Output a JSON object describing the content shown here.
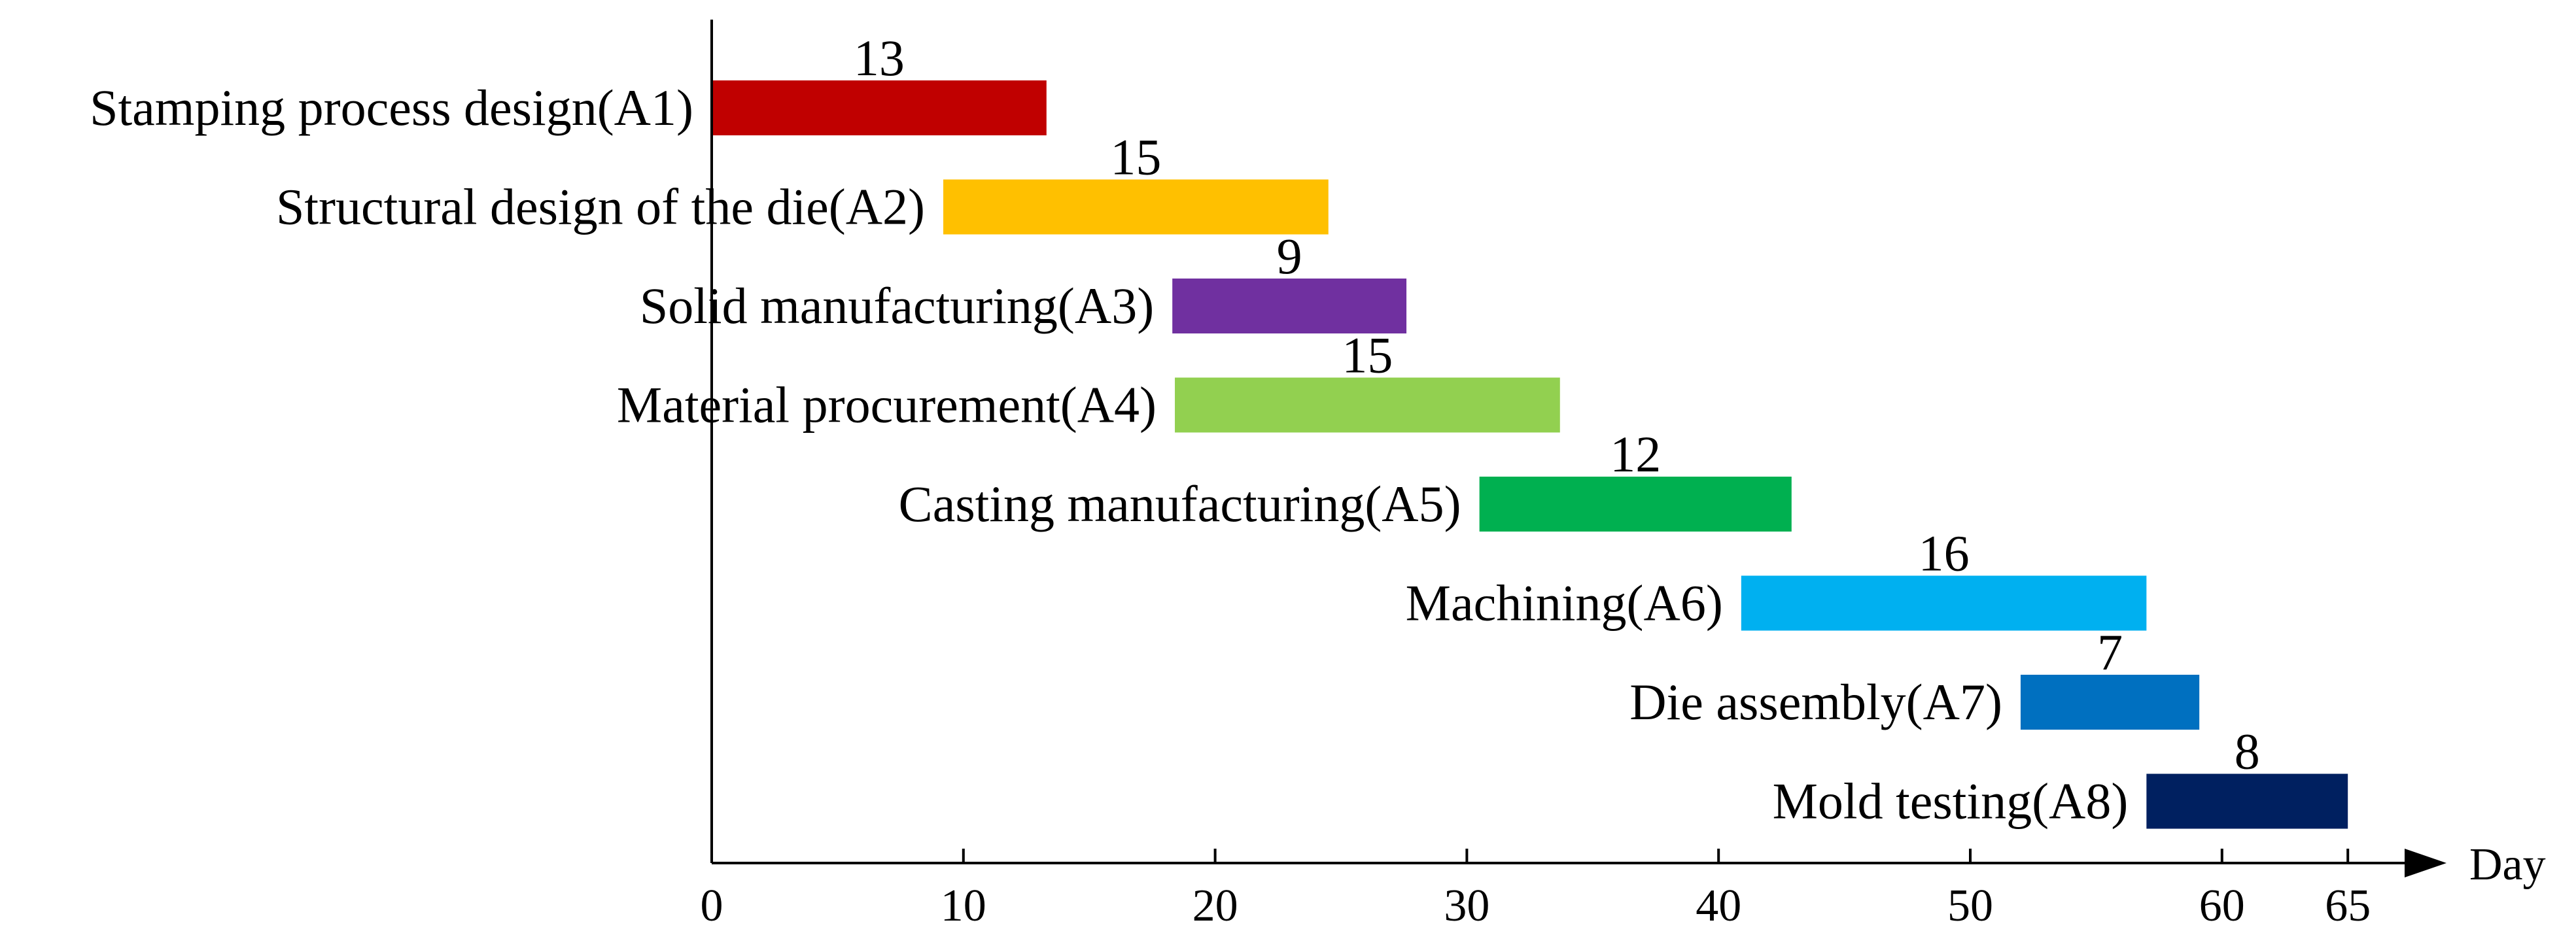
{
  "chart_data": {
    "type": "gantt",
    "title": "",
    "xlabel": "Day",
    "ylabel": "",
    "xlim": [
      0,
      65
    ],
    "x_ticks": [
      0,
      10,
      20,
      30,
      40,
      50,
      60,
      65
    ],
    "tasks": [
      {
        "label": "Stamping process design(A1)",
        "start": 0,
        "duration": 13,
        "end": 13.3,
        "color": "#c00000"
      },
      {
        "label": "Structural design of the die(A2)",
        "start": 9.2,
        "duration": 15,
        "end": 24.5,
        "color": "#ffc000"
      },
      {
        "label": "Solid manufacturing(A3)",
        "start": 18.3,
        "duration": 9,
        "end": 27.6,
        "color": "#7030a0"
      },
      {
        "label": "Material procurement(A4)",
        "start": 18.4,
        "duration": 15,
        "end": 33.7,
        "color": "#92d050"
      },
      {
        "label": "Casting manufacturing(A5)",
        "start": 30.5,
        "duration": 12,
        "end": 42.9,
        "color": "#00b050"
      },
      {
        "label": "Machining(A6)",
        "start": 40.9,
        "duration": 16,
        "end": 57.0,
        "color": "#00b0f0"
      },
      {
        "label": "Die assembly(A7)",
        "start": 52.0,
        "duration": 7,
        "end": 59.1,
        "color": "#0070c0"
      },
      {
        "label": "Mold testing(A8)",
        "start": 57.0,
        "duration": 8,
        "end": 65.0,
        "color": "#002060"
      }
    ]
  }
}
